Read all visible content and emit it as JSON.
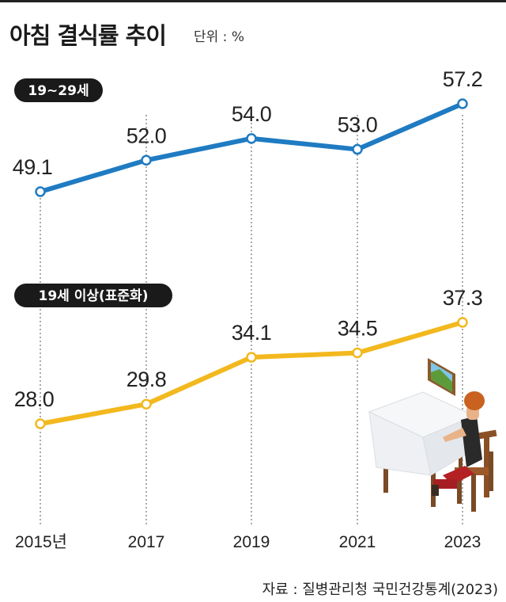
{
  "header": {
    "title": "아침 결식률 추이",
    "unit": "단위 : %"
  },
  "footer": {
    "source": "자료 : 질병관리청 국민건강통계(2023)"
  },
  "chart_data": {
    "type": "line",
    "x": [
      "2015년",
      "2017",
      "2019",
      "2021",
      "2023"
    ],
    "series": [
      {
        "name": "19~29세",
        "values": [
          49.1,
          52.0,
          54.0,
          53.0,
          57.2
        ],
        "color": "#1f7bc2"
      },
      {
        "name": "19세 이상(표준화)",
        "values": [
          28.0,
          29.8,
          34.1,
          34.5,
          37.3
        ],
        "color": "#f2b81d"
      }
    ],
    "ylabel": "",
    "grid": "vertical dotted",
    "illustration": "person eating at table"
  }
}
